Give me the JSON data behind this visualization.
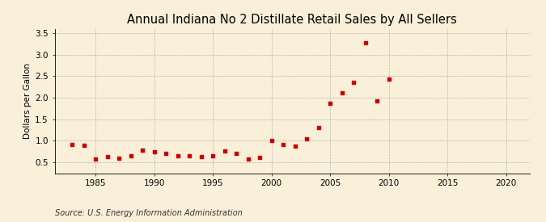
{
  "title": "Annual Indiana No 2 Distillate Retail Sales by All Sellers",
  "ylabel": "Dollars per Gallon",
  "source": "Source: U.S. Energy Information Administration",
  "background_color": "#faefd9",
  "marker_color": "#cc0000",
  "xlim": [
    1981.5,
    2022
  ],
  "ylim": [
    0.25,
    3.6
  ],
  "xticks": [
    1985,
    1990,
    1995,
    2000,
    2005,
    2010,
    2015,
    2020
  ],
  "yticks": [
    0.5,
    1.0,
    1.5,
    2.0,
    2.5,
    3.0,
    3.5
  ],
  "years": [
    1983,
    1984,
    1985,
    1986,
    1987,
    1988,
    1989,
    1990,
    1991,
    1992,
    1993,
    1994,
    1995,
    1996,
    1997,
    1998,
    1999,
    2000,
    2001,
    2002,
    2003,
    2004,
    2005,
    2006,
    2007,
    2008,
    2009,
    2010
  ],
  "values": [
    0.92,
    0.9,
    0.57,
    0.63,
    0.6,
    0.65,
    0.78,
    0.74,
    0.7,
    0.65,
    0.65,
    0.63,
    0.65,
    0.76,
    0.7,
    0.57,
    0.62,
    1.0,
    0.92,
    0.88,
    1.05,
    1.3,
    1.87,
    2.12,
    2.35,
    3.27,
    1.93,
    2.44
  ],
  "title_fontsize": 10.5,
  "ylabel_fontsize": 7.5,
  "tick_fontsize": 7.5,
  "source_fontsize": 7,
  "marker_size": 9
}
